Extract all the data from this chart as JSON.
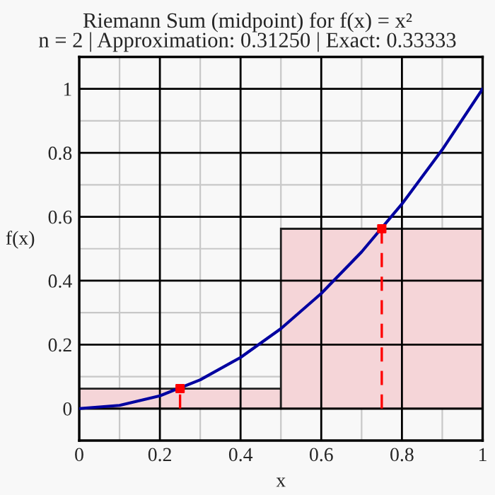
{
  "chart_data": {
    "type": "histogram",
    "title": "Riemann Sum (midpoint) for f(x) = x²",
    "subtitle": "n = 2 | Approximation: 0.31250 | Exact: 0.33333",
    "xlabel": "x",
    "ylabel": "f(x)",
    "bins": [
      0,
      0.5,
      1
    ],
    "values": [
      0.0625,
      0.5625
    ],
    "color": "#f5d5d8",
    "series": [
      {
        "type": "line",
        "color": "#0000a0",
        "x": [
          0,
          0.1,
          0.2,
          0.3,
          0.4,
          0.5,
          0.6,
          0.7,
          0.8,
          0.9,
          1
        ],
        "values": [
          0,
          0.01,
          0.04,
          0.09,
          0.16,
          0.25,
          0.36,
          0.49,
          0.64,
          0.81,
          1
        ]
      },
      {
        "type": "lollipop",
        "color": "#ff0000",
        "line_style": "dashed",
        "x": [
          0.25,
          0.75
        ],
        "values": [
          0.0625,
          0.5625
        ]
      }
    ],
    "xlim": [
      0,
      1
    ],
    "ylim": [
      -0.1,
      1.1
    ],
    "xticks": [
      0,
      {
        "value": 0.1,
        "label": null
      },
      0.2,
      {
        "value": 0.3,
        "label": null
      },
      0.4,
      {
        "value": 0.5,
        "label": null
      },
      0.6,
      {
        "value": 0.7,
        "label": null
      },
      0.8,
      {
        "value": 0.9,
        "label": null
      },
      1
    ],
    "yticks": [
      {
        "value": -0.1,
        "label": null
      },
      0,
      {
        "value": 0.1,
        "label": null
      },
      0.2,
      {
        "value": 0.3,
        "label": null
      },
      0.4,
      {
        "value": 0.5,
        "label": null
      },
      0.6,
      {
        "value": 0.7,
        "label": null
      },
      0.8,
      {
        "value": 0.9,
        "label": null
      },
      1
    ],
    "grid": true
  }
}
